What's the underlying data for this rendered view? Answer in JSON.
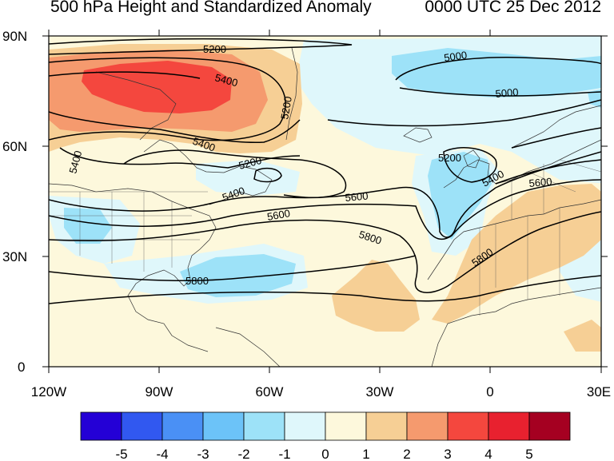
{
  "title_left": "500 hPa Height and Standardized Anomaly",
  "title_right": "0000 UTC 25 Dec 2012",
  "lat_labels": [
    "90N",
    "60N",
    "30N",
    "0"
  ],
  "lon_labels": [
    "120W",
    "90W",
    "60W",
    "30W",
    "0",
    "30E"
  ],
  "contour_labels": [
    "5200",
    "5400",
    "5200",
    "5400",
    "5400",
    "5200",
    "5400",
    "5600",
    "5600",
    "5800",
    "5800",
    "5000",
    "5000",
    "5200",
    "5400",
    "5600",
    "5800"
  ],
  "colorbar": {
    "labels": [
      "-5",
      "-4",
      "-3",
      "-2",
      "-1",
      "0",
      "1",
      "2",
      "3",
      "4",
      "5"
    ],
    "colors": [
      "#2400d6",
      "#3158f0",
      "#4a90f5",
      "#6cc3f8",
      "#9de2f8",
      "#dff7fb",
      "#fdf8dc",
      "#f6cf95",
      "#f59a6e",
      "#f4473e",
      "#e8212f",
      "#a50021"
    ]
  },
  "colors": {
    "land_bg": "#fdf8dc",
    "anomaly_pos_2": "#f6cf95",
    "anomaly_pos_3": "#f59a6e",
    "anomaly_pos_4": "#f4473e",
    "anomaly_neg_1": "#dff7fb",
    "anomaly_neg_2": "#9de2f8"
  }
}
